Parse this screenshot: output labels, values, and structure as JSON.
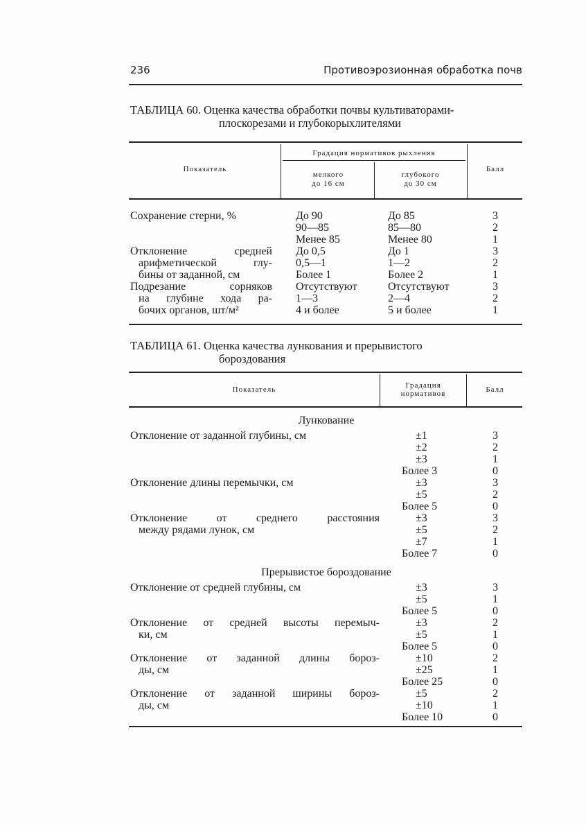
{
  "header": {
    "page_number": "236",
    "running_title": "Противоэрозионная обработка почв"
  },
  "table60": {
    "title_line1": "ТАБЛИЦА 60. Оценка качества обработки почвы культиваторами-",
    "title_line2": "плоскорезами и глубокорыхлителями",
    "columns": {
      "indicator": "Показатель",
      "group": "Градация нормативов рыхления",
      "shallow_l1": "мелкого",
      "shallow_l2": "до 16 см",
      "deep_l1": "глубокого",
      "deep_l2": "до 30 см",
      "score": "Балл"
    },
    "rows": [
      {
        "label": "Сохранение стерни, %",
        "shallow": "До 90",
        "deep": "До 85",
        "score": "3"
      },
      {
        "label": "",
        "shallow": "90—85",
        "deep": "85—80",
        "score": "2"
      },
      {
        "label": "",
        "shallow": "Менее 85",
        "deep": "Менее 80",
        "score": "1"
      },
      {
        "label": "Отклонение средней",
        "shallow": "До 0,5",
        "deep": "До 1",
        "score": "3"
      },
      {
        "label": "арифметической глу-",
        "shallow": "0,5—1",
        "deep": "1—2",
        "score": "2"
      },
      {
        "label": "бины от заданной, см",
        "shallow": "Более 1",
        "deep": "Более 2",
        "score": "1"
      },
      {
        "label": "Подрезание сорняков",
        "shallow": "Отсутствуют",
        "deep": "Отсутствуют",
        "score": "3"
      },
      {
        "label": "на глубине хода ра-",
        "shallow": "1—3",
        "deep": "2—4",
        "score": "2"
      },
      {
        "label": "бочих органов, шт/м²",
        "shallow": "4 и более",
        "deep": "5 и более",
        "score": "1"
      }
    ]
  },
  "table61": {
    "title_line1": "ТАБЛИЦА 61. Оценка качества лункования и прерывистого",
    "title_line2": "бороздования",
    "columns": {
      "indicator": "Показатель",
      "grad_l1": "Градация",
      "grad_l2": "нормативов",
      "score": "Балл"
    },
    "sections": [
      {
        "name": "Лункование",
        "rows": [
          {
            "label": "Отклонение от заданной глубины, см",
            "value": "±1",
            "score": "3"
          },
          {
            "label": "",
            "value": "±2",
            "score": "2"
          },
          {
            "label": "",
            "value": "±3",
            "score": "1"
          },
          {
            "label": "",
            "value": "Более 3",
            "score": "0"
          },
          {
            "label": "Отклонение длины перемычки, см",
            "value": "±3",
            "score": "3"
          },
          {
            "label": "",
            "value": "±5",
            "score": "2"
          },
          {
            "label": "",
            "value": "Более 5",
            "score": "0"
          },
          {
            "label": "Отклонение от среднего расстояния",
            "value": "±3",
            "score": "3"
          },
          {
            "label": "между рядами лунок, см",
            "value": "±5",
            "score": "2"
          },
          {
            "label": "",
            "value": "±7",
            "score": "1"
          },
          {
            "label": "",
            "value": "Более 7",
            "score": "0"
          }
        ]
      },
      {
        "name": "Прерывистое бороздование",
        "rows": [
          {
            "label": "Отклонение от средней глубины, см",
            "value": "±3",
            "score": "3"
          },
          {
            "label": "",
            "value": "±5",
            "score": "1"
          },
          {
            "label": "",
            "value": "Более 5",
            "score": "0"
          },
          {
            "label": "Отклонение от средней высоты перемыч-",
            "value": "±3",
            "score": "2"
          },
          {
            "label": "ки, см",
            "value": "±5",
            "score": "1"
          },
          {
            "label": "",
            "value": "Более 5",
            "score": "0"
          },
          {
            "label": "Отклонение от заданной длины бороз-",
            "value": "±10",
            "score": "2"
          },
          {
            "label": "ды, см",
            "value": "±25",
            "score": "1"
          },
          {
            "label": "",
            "value": "Более 25",
            "score": "0"
          },
          {
            "label": "Отклонение от заданной ширины бороз-",
            "value": "±5",
            "score": "2"
          },
          {
            "label": "ды, см",
            "value": "±10",
            "score": "1"
          },
          {
            "label": "",
            "value": "Более 10",
            "score": "0"
          }
        ]
      }
    ]
  }
}
